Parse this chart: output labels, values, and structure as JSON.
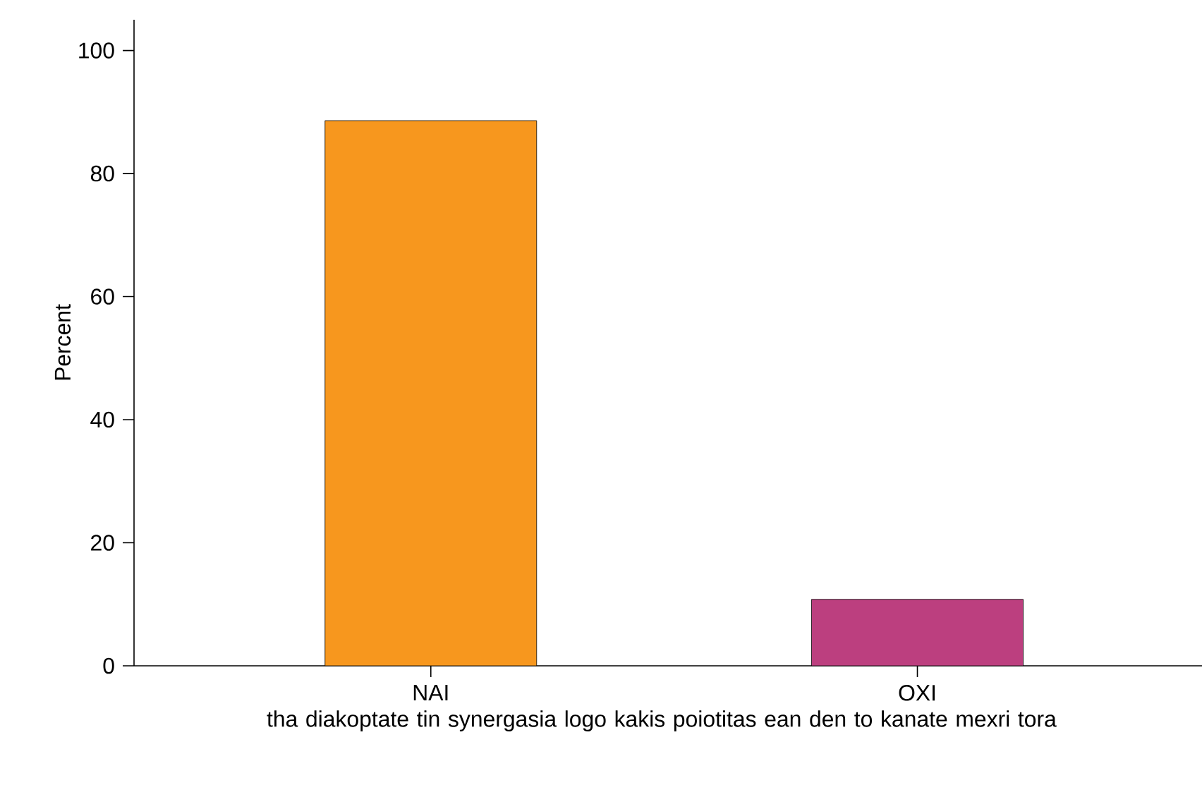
{
  "chart_data": {
    "type": "bar",
    "xlabel": "tha diakoptate tin synergasia logo kakis poiotitas ean den to kanate mexri tora",
    "ylabel": "Percent",
    "categories": [
      "NAI",
      "OXI"
    ],
    "values": [
      88.6,
      10.8
    ],
    "colors": [
      "#f7971e",
      "#bc3f7f"
    ],
    "ylim": [
      0,
      105
    ],
    "yticks": [
      0,
      20,
      40,
      60,
      80,
      100
    ],
    "grid": false
  }
}
